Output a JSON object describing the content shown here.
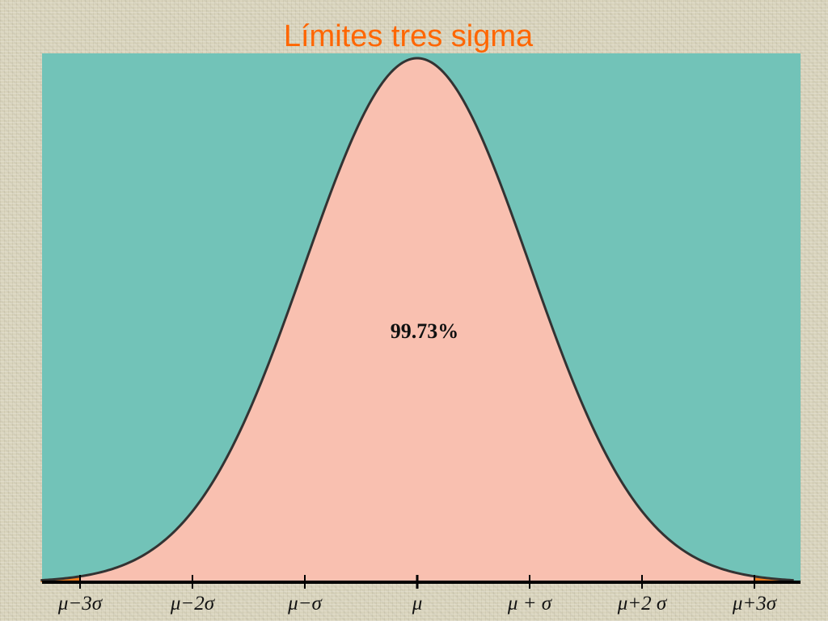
{
  "chart_data": {
    "type": "area",
    "title": "Límites tres sigma",
    "distribution": "normal",
    "x_ticks": [
      -3,
      -2,
      -1,
      0,
      1,
      2,
      3
    ],
    "tick_labels": [
      "μ−3σ",
      "μ−2σ",
      "μ−σ",
      "μ",
      "μ + σ",
      "μ+2 σ",
      "μ+3σ"
    ],
    "shaded_range": [
      -3,
      3
    ],
    "shaded_percentage": "99.73%",
    "xlim": [
      -3.35,
      3.35
    ]
  },
  "colors": {
    "title": "#ff6600",
    "plot_background": "#72c3b8",
    "shaded_area": "#f9c0b0",
    "tail_area": "#f07d1e",
    "curve": "#333333",
    "axis": "#000000"
  }
}
